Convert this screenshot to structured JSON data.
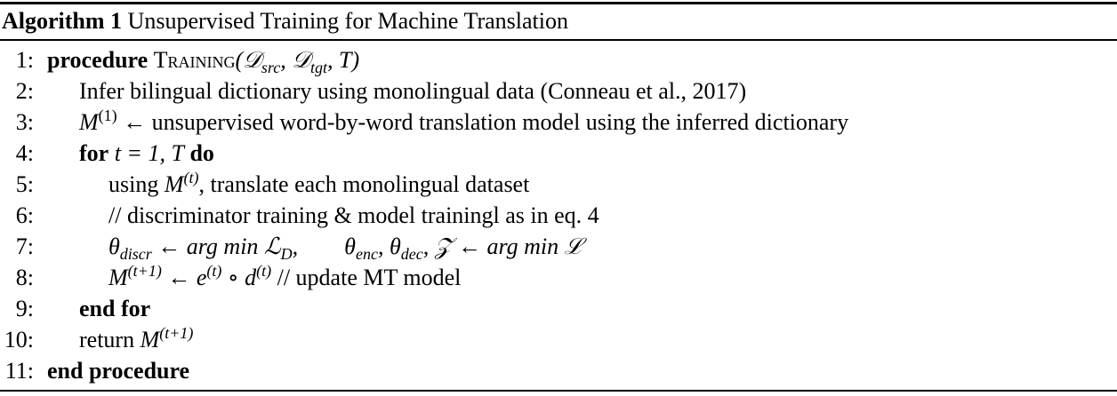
{
  "caption": {
    "label": "Algorithm 1",
    "title": "Unsupervised Training for Machine Translation"
  },
  "lines": [
    {
      "num": "1:",
      "kw1": "procedure",
      "name": "Training",
      "args": "(𝒟",
      "s1": "src",
      "comma1": ", 𝒟",
      "s2": "tgt",
      "tail": ", T)"
    },
    {
      "num": "2:",
      "text": "Infer bilingual dictionary using monolingual data (Conneau et al., 2017)"
    },
    {
      "num": "3:",
      "m": "M",
      "sup": "(1)",
      "text": " ← unsupervised word-by-word translation model using the inferred dictionary"
    },
    {
      "num": "4:",
      "kw": "for",
      "cond": "t = 1, T",
      "kw2": "do"
    },
    {
      "num": "5:",
      "pre": "using ",
      "m": "M",
      "sup": "(t)",
      "text": ", translate each monolingual dataset"
    },
    {
      "num": "6:",
      "text": "// discriminator training & model trainingl as in eq. 4"
    },
    {
      "num": "7:",
      "a": "θ",
      "a_sub": "discr",
      "b": " ← arg min ℒ",
      "b_sub": "D",
      "c": ",  θ",
      "c_sub": "enc",
      "d": ", θ",
      "d_sub": "dec",
      "e": ", 𝒵 ← arg min ℒ"
    },
    {
      "num": "8:",
      "m": "M",
      "sup": "(t+1)",
      "mid": " ← e",
      "sup2": "(t)",
      "mid2": " ∘ d",
      "sup3": "(t)",
      "text": " // update MT model"
    },
    {
      "num": "9:",
      "kw": "end for"
    },
    {
      "num": "10:",
      "pre": "return ",
      "m": "M",
      "sup": "(t+1)"
    },
    {
      "num": "11:",
      "kw": "end procedure"
    }
  ]
}
